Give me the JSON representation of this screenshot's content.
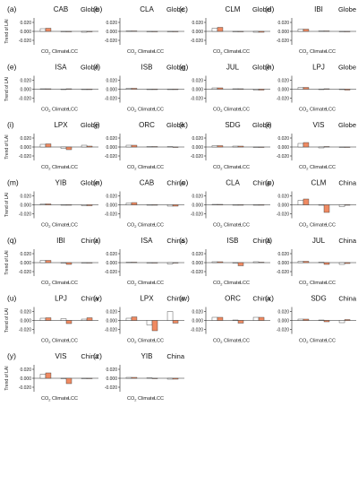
{
  "figure": {
    "ylabel": "Trend of LAI",
    "xtick_labels": [
      "CO2",
      "Climate",
      "LCC"
    ],
    "y_ticks": [
      "0.020",
      "0.000",
      "-0.020"
    ],
    "colors": {
      "open_bar": "#ffffff",
      "filled_bar": "#ef8a62",
      "stroke": "#333333"
    }
  },
  "chart_data": [
    {
      "type": "bar",
      "panel_label": "(a)",
      "model": "CAB",
      "region": "Globe",
      "categories": [
        "CO2",
        "Climate",
        "LCC"
      ],
      "series": [
        {
          "values": [
            0.006,
            0.0,
            -0.002
          ]
        },
        {
          "values": [
            0.007,
            0.0,
            -0.001
          ]
        }
      ],
      "ylim": [
        -0.03,
        0.03
      ]
    },
    {
      "type": "bar",
      "panel_label": "(b)",
      "model": "CLA",
      "region": "Globe",
      "categories": [
        "CO2",
        "Climate",
        "LCC"
      ],
      "series": [
        {
          "values": [
            0.001,
            0.0,
            0.0
          ]
        },
        {
          "values": [
            0.001,
            0.0,
            0.0
          ]
        }
      ],
      "ylim": [
        -0.03,
        0.03
      ]
    },
    {
      "type": "bar",
      "panel_label": "(c)",
      "model": "CLM",
      "region": "Globe",
      "categories": [
        "CO2",
        "Climate",
        "LCC"
      ],
      "series": [
        {
          "values": [
            0.007,
            -0.001,
            -0.002
          ]
        },
        {
          "values": [
            0.009,
            -0.001,
            -0.002
          ]
        }
      ],
      "ylim": [
        -0.03,
        0.03
      ]
    },
    {
      "type": "bar",
      "panel_label": "(d)",
      "model": "IBI",
      "region": "Globe",
      "categories": [
        "CO2",
        "Climate",
        "LCC"
      ],
      "series": [
        {
          "values": [
            0.005,
            0.001,
            0.0
          ]
        },
        {
          "values": [
            0.005,
            0.001,
            0.0
          ]
        }
      ],
      "ylim": [
        -0.03,
        0.03
      ]
    },
    {
      "type": "bar",
      "panel_label": "(e)",
      "model": "ISA",
      "region": "Globe",
      "categories": [
        "CO2",
        "Climate",
        "LCC"
      ],
      "series": [
        {
          "values": [
            0.001,
            0.0,
            -0.001
          ]
        },
        {
          "values": [
            0.001,
            0.001,
            -0.001
          ]
        }
      ],
      "ylim": [
        -0.03,
        0.03
      ]
    },
    {
      "type": "bar",
      "panel_label": "(f)",
      "model": "ISB",
      "region": "Globe",
      "categories": [
        "CO2",
        "Climate",
        "LCC"
      ],
      "series": [
        {
          "values": [
            0.002,
            0.0,
            -0.001
          ]
        },
        {
          "values": [
            0.002,
            0.0,
            -0.001
          ]
        }
      ],
      "ylim": [
        -0.03,
        0.03
      ]
    },
    {
      "type": "bar",
      "panel_label": "(g)",
      "model": "JUL",
      "region": "Globe",
      "categories": [
        "CO2",
        "Climate",
        "LCC"
      ],
      "series": [
        {
          "values": [
            0.003,
            0.001,
            -0.002
          ]
        },
        {
          "values": [
            0.003,
            0.001,
            -0.002
          ]
        }
      ],
      "ylim": [
        -0.03,
        0.03
      ]
    },
    {
      "type": "bar",
      "panel_label": "(h)",
      "model": "LPJ",
      "region": "Globe",
      "categories": [
        "CO2",
        "Climate",
        "LCC"
      ],
      "series": [
        {
          "values": [
            0.004,
            0.0,
            -0.001
          ]
        },
        {
          "values": [
            0.004,
            0.001,
            -0.002
          ]
        }
      ],
      "ylim": [
        -0.03,
        0.03
      ]
    },
    {
      "type": "bar",
      "panel_label": "(i)",
      "model": "LPX",
      "region": "Globe",
      "categories": [
        "CO2",
        "Climate",
        "LCC"
      ],
      "series": [
        {
          "values": [
            0.006,
            -0.003,
            0.004
          ]
        },
        {
          "values": [
            0.007,
            -0.006,
            0.002
          ]
        }
      ],
      "ylim": [
        -0.03,
        0.03
      ]
    },
    {
      "type": "bar",
      "panel_label": "(j)",
      "model": "ORC",
      "region": "Globe",
      "categories": [
        "CO2",
        "Climate",
        "LCC"
      ],
      "series": [
        {
          "values": [
            0.004,
            0.001,
            0.001
          ]
        },
        {
          "values": [
            0.004,
            0.001,
            0.0
          ]
        }
      ],
      "ylim": [
        -0.03,
        0.03
      ]
    },
    {
      "type": "bar",
      "panel_label": "(k)",
      "model": "SDG",
      "region": "Globe",
      "categories": [
        "CO2",
        "Climate",
        "LCC"
      ],
      "series": [
        {
          "values": [
            0.003,
            0.002,
            -0.001
          ]
        },
        {
          "values": [
            0.003,
            0.002,
            -0.001
          ]
        }
      ],
      "ylim": [
        -0.03,
        0.03
      ]
    },
    {
      "type": "bar",
      "panel_label": "(l)",
      "model": "VIS",
      "region": "Globe",
      "categories": [
        "CO2",
        "Climate",
        "LCC"
      ],
      "series": [
        {
          "values": [
            0.008,
            -0.002,
            0.0
          ]
        },
        {
          "values": [
            0.01,
            0.001,
            -0.001
          ]
        }
      ],
      "ylim": [
        -0.03,
        0.03
      ]
    },
    {
      "type": "bar",
      "panel_label": "(m)",
      "model": "YIB",
      "region": "Globe",
      "categories": [
        "CO2",
        "Climate",
        "LCC"
      ],
      "series": [
        {
          "values": [
            0.002,
            0.0,
            -0.002
          ]
        },
        {
          "values": [
            0.002,
            0.0,
            -0.002
          ]
        }
      ],
      "ylim": [
        -0.03,
        0.03
      ]
    },
    {
      "type": "bar",
      "panel_label": "(n)",
      "model": "CAB",
      "region": "China",
      "categories": [
        "CO2",
        "Climate",
        "LCC"
      ],
      "series": [
        {
          "values": [
            0.004,
            0.0,
            -0.003
          ]
        },
        {
          "values": [
            0.005,
            0.0,
            -0.003
          ]
        }
      ],
      "ylim": [
        -0.03,
        0.03
      ]
    },
    {
      "type": "bar",
      "panel_label": "(o)",
      "model": "CLA",
      "region": "China",
      "categories": [
        "CO2",
        "Climate",
        "LCC"
      ],
      "series": [
        {
          "values": [
            0.001,
            0.0,
            0.0
          ]
        },
        {
          "values": [
            0.001,
            0.0,
            0.0
          ]
        }
      ],
      "ylim": [
        -0.03,
        0.03
      ]
    },
    {
      "type": "bar",
      "panel_label": "(p)",
      "model": "CLM",
      "region": "China",
      "categories": [
        "CO2",
        "Climate",
        "LCC"
      ],
      "series": [
        {
          "values": [
            0.01,
            0.0,
            -0.004
          ]
        },
        {
          "values": [
            0.013,
            -0.017,
            0.0
          ]
        }
      ],
      "ylim": [
        -0.03,
        0.03
      ]
    },
    {
      "type": "bar",
      "panel_label": "(q)",
      "model": "IBI",
      "region": "China",
      "categories": [
        "CO2",
        "Climate",
        "LCC"
      ],
      "series": [
        {
          "values": [
            0.005,
            0.0,
            0.0
          ]
        },
        {
          "values": [
            0.005,
            -0.004,
            0.0
          ]
        }
      ],
      "ylim": [
        -0.03,
        0.03
      ]
    },
    {
      "type": "bar",
      "panel_label": "(r)",
      "model": "ISA",
      "region": "China",
      "categories": [
        "CO2",
        "Climate",
        "LCC"
      ],
      "series": [
        {
          "values": [
            0.001,
            0.0,
            -0.003
          ]
        },
        {
          "values": [
            0.001,
            -0.001,
            -0.001
          ]
        }
      ],
      "ylim": [
        -0.03,
        0.03
      ]
    },
    {
      "type": "bar",
      "panel_label": "(s)",
      "model": "ISB",
      "region": "China",
      "categories": [
        "CO2",
        "Climate",
        "LCC"
      ],
      "series": [
        {
          "values": [
            0.002,
            0.0,
            0.002
          ]
        },
        {
          "values": [
            0.002,
            -0.007,
            0.001
          ]
        }
      ],
      "ylim": [
        -0.03,
        0.03
      ]
    },
    {
      "type": "bar",
      "panel_label": "(t)",
      "model": "JUL",
      "region": "China",
      "categories": [
        "CO2",
        "Climate",
        "LCC"
      ],
      "series": [
        {
          "values": [
            0.003,
            0.001,
            -0.004
          ]
        },
        {
          "values": [
            0.003,
            -0.004,
            -0.002
          ]
        }
      ],
      "ylim": [
        -0.03,
        0.03
      ]
    },
    {
      "type": "bar",
      "panel_label": "(u)",
      "model": "LPJ",
      "region": "China",
      "categories": [
        "CO2",
        "Climate",
        "LCC"
      ],
      "series": [
        {
          "values": [
            0.005,
            0.004,
            0.003
          ]
        },
        {
          "values": [
            0.006,
            -0.007,
            0.006
          ]
        }
      ],
      "ylim": [
        -0.03,
        0.03
      ]
    },
    {
      "type": "bar",
      "panel_label": "(v)",
      "model": "LPX",
      "region": "China",
      "categories": [
        "CO2",
        "Climate",
        "LCC"
      ],
      "series": [
        {
          "values": [
            0.005,
            -0.01,
            0.02
          ]
        },
        {
          "values": [
            0.008,
            -0.023,
            -0.006
          ]
        }
      ],
      "ylim": [
        -0.03,
        0.03
      ]
    },
    {
      "type": "bar",
      "panel_label": "(w)",
      "model": "ORC",
      "region": "China",
      "categories": [
        "CO2",
        "Climate",
        "LCC"
      ],
      "series": [
        {
          "values": [
            0.007,
            0.001,
            0.007
          ]
        },
        {
          "values": [
            0.007,
            -0.006,
            0.007
          ]
        }
      ],
      "ylim": [
        -0.03,
        0.03
      ]
    },
    {
      "type": "bar",
      "panel_label": "(x)",
      "model": "SDG",
      "region": "China",
      "categories": [
        "CO2",
        "Climate",
        "LCC"
      ],
      "series": [
        {
          "values": [
            0.003,
            0.001,
            -0.005
          ]
        },
        {
          "values": [
            0.003,
            -0.003,
            0.002
          ]
        }
      ],
      "ylim": [
        -0.03,
        0.03
      ]
    },
    {
      "type": "bar",
      "panel_label": "(y)",
      "model": "VIS",
      "region": "China",
      "categories": [
        "CO2",
        "Climate",
        "LCC"
      ],
      "series": [
        {
          "values": [
            0.009,
            0.0,
            -0.001
          ]
        },
        {
          "values": [
            0.012,
            -0.012,
            -0.001
          ]
        }
      ],
      "ylim": [
        -0.03,
        0.03
      ]
    },
    {
      "type": "bar",
      "panel_label": "(z)",
      "model": "YIB",
      "region": "China",
      "categories": [
        "CO2",
        "Climate",
        "LCC"
      ],
      "series": [
        {
          "values": [
            0.002,
            0.001,
            -0.002
          ]
        },
        {
          "values": [
            0.002,
            0.0,
            -0.002
          ]
        }
      ],
      "ylim": [
        -0.03,
        0.03
      ]
    }
  ]
}
